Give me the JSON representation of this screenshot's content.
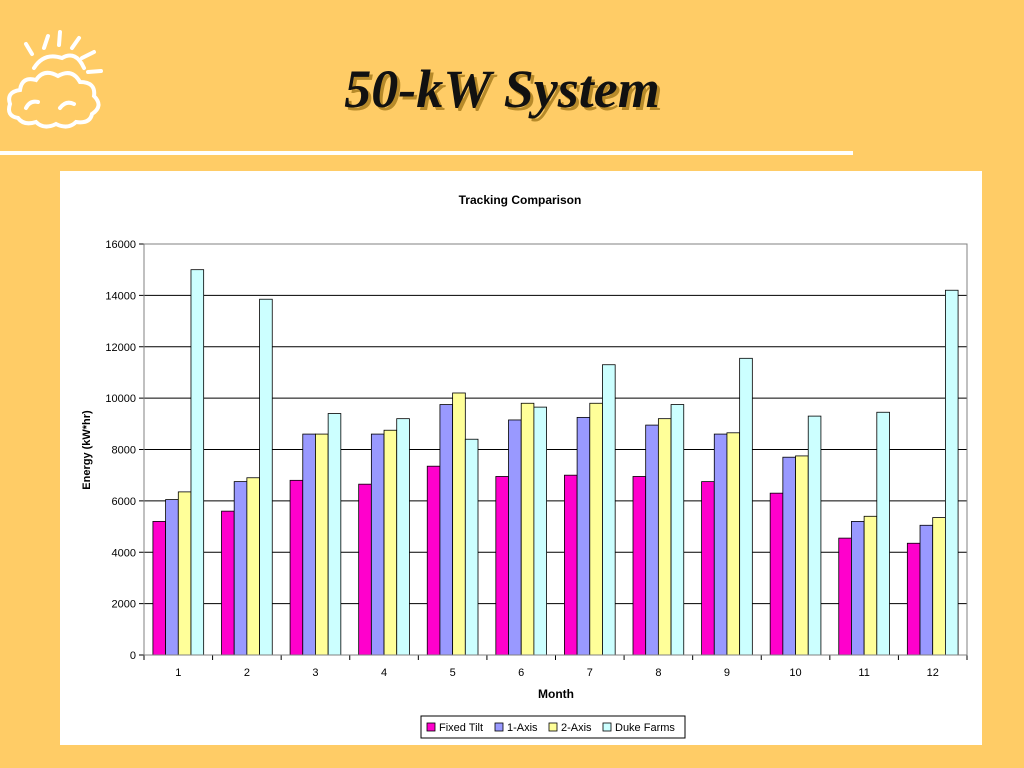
{
  "slide": {
    "title": "50-kW System"
  },
  "colors": {
    "background": "#FFCC66",
    "rule": "#FFFFFF",
    "panel": "#FFFFFF"
  },
  "chart_data": {
    "type": "bar",
    "title": "Tracking Comparison",
    "xlabel": "Month",
    "ylabel": "Energy (kW*hr)",
    "ylim": [
      0,
      16000
    ],
    "yticks": [
      0,
      2000,
      4000,
      6000,
      8000,
      10000,
      12000,
      14000,
      16000
    ],
    "grid": true,
    "legend_position": "bottom",
    "categories": [
      "1",
      "2",
      "3",
      "4",
      "5",
      "6",
      "7",
      "8",
      "9",
      "10",
      "11",
      "12"
    ],
    "series": [
      {
        "name": "Fixed Tilt",
        "color": "#FF00CC",
        "values": [
          5200,
          5600,
          6800,
          6650,
          7350,
          6950,
          7000,
          6950,
          6750,
          6300,
          4550,
          4350
        ]
      },
      {
        "name": "1-Axis",
        "color": "#9999FF",
        "values": [
          6050,
          6750,
          8600,
          8600,
          9750,
          9150,
          9250,
          8950,
          8600,
          7700,
          5200,
          5050
        ]
      },
      {
        "name": "2-Axis",
        "color": "#FFFF99",
        "values": [
          6350,
          6900,
          8600,
          8750,
          10200,
          9800,
          9800,
          9200,
          8650,
          7750,
          5400,
          5350
        ]
      },
      {
        "name": "Duke Farms",
        "color": "#CCFFFF",
        "values": [
          15000,
          13850,
          9400,
          9200,
          8400,
          9650,
          11300,
          9750,
          11550,
          9300,
          9450,
          14200
        ]
      }
    ]
  }
}
